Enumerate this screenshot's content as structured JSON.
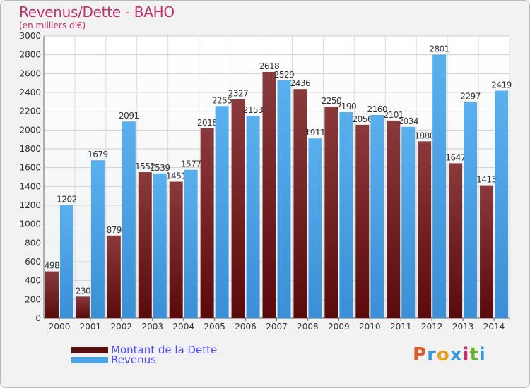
{
  "header": {
    "title": "Revenus/Dette - BAHO",
    "subtitle": "(en milliers d'€)"
  },
  "legend": {
    "items": [
      {
        "label": "Montant de la Dette",
        "color": "#7a1a1a"
      },
      {
        "label": "Revenus",
        "color": "#4aa3e6"
      }
    ]
  },
  "logo": {
    "text": "Proxiti",
    "colors": [
      "#e05a2a",
      "#3a9ad9",
      "#e8a020",
      "#3a9ad9",
      "#d02a6a",
      "#6ab030",
      "#3a9ad9"
    ]
  },
  "chart_data": {
    "type": "bar",
    "title": "Revenus/Dette - BAHO",
    "subtitle": "(en milliers d'€)",
    "categories": [
      "2000",
      "2001",
      "2002",
      "2003",
      "2004",
      "2005",
      "2006",
      "2007",
      "2008",
      "2009",
      "2010",
      "2011",
      "2012",
      "2013",
      "2014"
    ],
    "series": [
      {
        "name": "Montant de la Dette",
        "color": "#7a1a1a",
        "values": [
          498,
          230,
          879,
          1552,
          1451,
          2018,
          2327,
          2618,
          2436,
          2250,
          2056,
          2101,
          1880,
          1647,
          1413
        ],
        "labels": [
          "498",
          "230",
          "879",
          "1552",
          "1451",
          "2018",
          "2327",
          "2618",
          "2436",
          "2250",
          "2056",
          "2101",
          "1880",
          "1647",
          "1413"
        ]
      },
      {
        "name": "Revenus",
        "color": "#4aa3e6",
        "values": [
          1202,
          1679,
          2091,
          1539,
          1577,
          2255,
          2153,
          2529,
          1911,
          2190,
          2160,
          2034,
          2801,
          2297,
          2419
        ],
        "labels": [
          "1202",
          "1679",
          "2091",
          "1539",
          "1577",
          "2255",
          "2153",
          "2529",
          "1911",
          "2190",
          "2160",
          "2034",
          "2801",
          "2297",
          "2419"
        ]
      }
    ],
    "ylim": [
      0,
      3000
    ],
    "yticks": [
      0,
      200,
      400,
      600,
      800,
      1000,
      1200,
      1400,
      1600,
      1800,
      2000,
      2200,
      2400,
      2600,
      2800,
      3000
    ],
    "grid": true,
    "legend_position": "bottom-left"
  }
}
